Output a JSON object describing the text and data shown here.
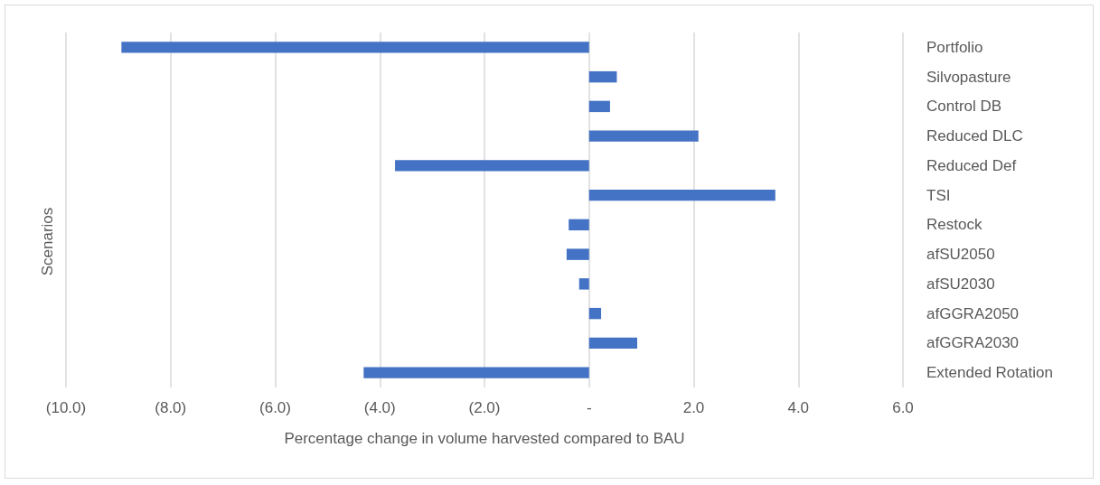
{
  "chart_data": {
    "type": "bar",
    "orientation": "horizontal",
    "xlabel": "Percentage change in volume harvested compared to BAU",
    "ylabel": "Scenarios",
    "categories": [
      "Portfolio",
      "Silvopasture",
      "Control DB",
      "Reduced DLC",
      "Reduced Def",
      "TSI",
      "Restock",
      "afSU2050",
      "afSU2030",
      "afGGRA2050",
      "afGGRA2030",
      "Extended Rotation"
    ],
    "values": [
      -8.94,
      0.53,
      0.4,
      2.09,
      -3.71,
      3.56,
      -0.39,
      -0.43,
      -0.19,
      0.23,
      0.92,
      -4.31
    ],
    "color": "#4472c4",
    "xlim": [
      -10,
      6
    ],
    "xticks": [
      {
        "value": -10,
        "label": "(10.0)"
      },
      {
        "value": -8,
        "label": "(8.0)"
      },
      {
        "value": -6,
        "label": "(6.0)"
      },
      {
        "value": -4,
        "label": "(4.0)"
      },
      {
        "value": -2,
        "label": "(2.0)"
      },
      {
        "value": 0,
        "label": "-"
      },
      {
        "value": 2,
        "label": "2.0"
      },
      {
        "value": 4,
        "label": "4.0"
      },
      {
        "value": 6,
        "label": "6.0"
      }
    ],
    "grid": "x"
  }
}
